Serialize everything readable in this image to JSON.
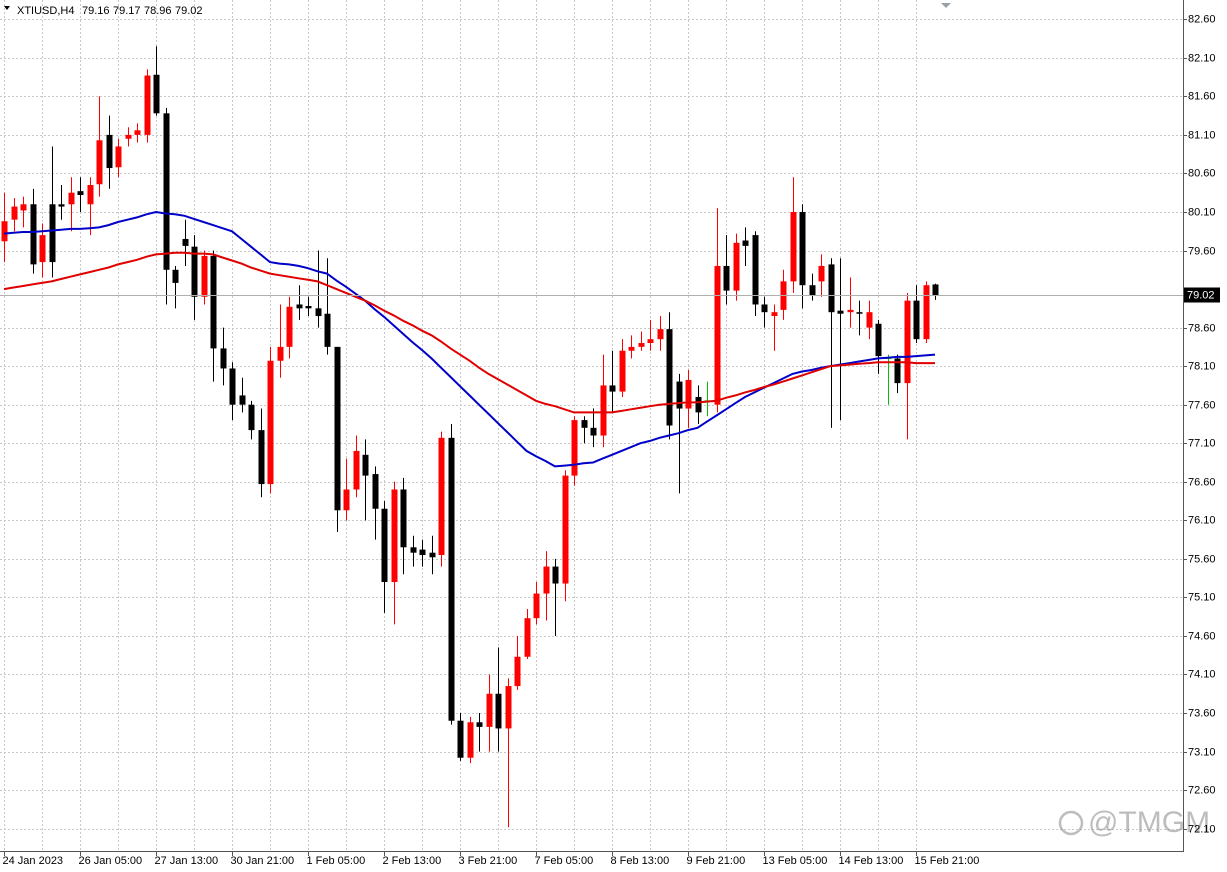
{
  "chart_data": {
    "type": "candlestick",
    "title": "XTIUSD,H4",
    "categories": [
      "24 Jan 2023",
      null,
      null,
      null,
      null,
      null,
      null,
      null,
      "26 Jan 05:00",
      null,
      null,
      null,
      null,
      null,
      null,
      null,
      "27 Jan 13:00",
      null,
      null,
      null,
      null,
      null,
      null,
      null,
      "30 Jan 21:00",
      null,
      null,
      null,
      null,
      null,
      null,
      null,
      "1 Feb 05:00",
      null,
      null,
      null,
      null,
      null,
      null,
      null,
      "2 Feb 13:00",
      null,
      null,
      null,
      null,
      null,
      null,
      null,
      "3 Feb 21:00",
      null,
      null,
      null,
      null,
      null,
      null,
      null,
      "7 Feb 05:00",
      null,
      null,
      null,
      null,
      null,
      null,
      null,
      "8 Feb 13:00",
      null,
      null,
      null,
      null,
      null,
      null,
      null,
      "9 Feb 21:00",
      null,
      null,
      null,
      null,
      null,
      null,
      null,
      "13 Feb 05:00",
      null,
      null,
      null,
      null,
      null,
      null,
      null,
      "14 Feb 13:00",
      null,
      null,
      null,
      null,
      null,
      null,
      null,
      "15 Feb 21:00",
      null,
      null
    ],
    "open": [
      79.72,
      80.0,
      80.12,
      80.2,
      79.45,
      80.2,
      80.2,
      80.2,
      80.37,
      80.2,
      80.46,
      81.1,
      80.68,
      81.05,
      81.1,
      81.1,
      81.88,
      81.38,
      79.35,
      79.75,
      79.65,
      79.0,
      79.53,
      78.33,
      78.07,
      77.72,
      77.6,
      77.27,
      76.57,
      78.17,
      78.35,
      78.9,
      78.88,
      78.85,
      78.78,
      78.35,
      76.23,
      76.5,
      76.95,
      76.7,
      76.25,
      75.3,
      76.5,
      75.75,
      75.72,
      75.68,
      75.65,
      77.17,
      73.5,
      73.02,
      73.48,
      73.42,
      73.85,
      73.4,
      73.95,
      74.33,
      74.83,
      75.15,
      75.5,
      75.28,
      76.68,
      77.4,
      77.3,
      77.2,
      77.85,
      77.77,
      78.3,
      78.35,
      78.4,
      78.45,
      78.58,
      77.9,
      77.55,
      77.7,
      77.65,
      77.6,
      79.4,
      79.08,
      79.73,
      79.8,
      78.9,
      78.75,
      78.83,
      79.2,
      80.1,
      79.15,
      79.2,
      79.42,
      78.82,
      78.8,
      78.8,
      78.6,
      78.65,
      78.2,
      78.2,
      77.88,
      78.95,
      78.45,
      79.16
    ],
    "high": [
      80.35,
      80.28,
      80.3,
      80.4,
      79.95,
      80.95,
      80.45,
      80.55,
      80.55,
      80.55,
      81.6,
      81.35,
      81.05,
      81.2,
      81.25,
      81.95,
      82.25,
      81.45,
      79.4,
      80.0,
      79.8,
      79.6,
      79.6,
      78.6,
      78.15,
      77.95,
      77.65,
      77.55,
      78.35,
      78.9,
      79.0,
      79.15,
      79.0,
      79.6,
      79.5,
      78.35,
      76.9,
      77.2,
      77.15,
      76.8,
      76.35,
      76.6,
      76.65,
      75.9,
      75.85,
      75.9,
      77.25,
      77.35,
      73.6,
      73.55,
      73.6,
      74.1,
      74.45,
      74.05,
      74.6,
      74.95,
      75.3,
      75.7,
      75.6,
      76.75,
      77.45,
      77.45,
      77.55,
      78.25,
      78.3,
      78.45,
      78.5,
      78.55,
      78.7,
      78.75,
      78.8,
      78.0,
      78.05,
      77.85,
      77.9,
      80.15,
      79.8,
      79.82,
      79.9,
      79.85,
      79.0,
      78.9,
      79.35,
      80.55,
      80.2,
      79.3,
      79.55,
      79.5,
      79.5,
      79.25,
      78.95,
      78.95,
      78.7,
      78.25,
      78.25,
      79.05,
      79.15,
      79.2,
      79.17
    ],
    "low": [
      79.45,
      79.85,
      79.9,
      79.3,
      79.25,
      79.25,
      80.0,
      79.85,
      80.1,
      79.8,
      80.3,
      80.4,
      80.55,
      80.95,
      81.0,
      81.0,
      81.35,
      78.9,
      78.85,
      79.4,
      78.7,
      78.9,
      77.9,
      77.85,
      77.4,
      77.5,
      77.15,
      76.4,
      76.45,
      77.95,
      78.2,
      78.7,
      78.75,
      78.6,
      78.25,
      75.95,
      76.1,
      76.4,
      76.1,
      75.85,
      74.9,
      74.75,
      75.4,
      75.5,
      75.5,
      75.4,
      75.5,
      73.45,
      72.98,
      72.95,
      73.1,
      73.1,
      73.1,
      72.12,
      73.9,
      74.3,
      74.75,
      74.8,
      74.6,
      75.05,
      76.55,
      77.1,
      77.05,
      77.05,
      77.5,
      77.7,
      78.2,
      78.3,
      78.3,
      78.3,
      77.15,
      76.45,
      77.3,
      77.35,
      77.45,
      77.5,
      78.9,
      78.95,
      79.4,
      78.75,
      78.6,
      78.3,
      78.7,
      79.05,
      78.85,
      78.95,
      79.0,
      77.3,
      77.4,
      78.6,
      78.5,
      78.45,
      78.0,
      77.6,
      77.75,
      77.15,
      78.4,
      78.4,
      78.96
    ],
    "close": [
      79.98,
      80.17,
      80.2,
      79.42,
      79.8,
      79.45,
      80.17,
      80.35,
      80.32,
      80.45,
      81.03,
      80.67,
      80.95,
      81.1,
      81.16,
      81.87,
      81.38,
      79.35,
      79.18,
      79.66,
      79.0,
      79.53,
      78.33,
      78.07,
      77.6,
      77.6,
      77.27,
      76.57,
      78.17,
      78.35,
      78.87,
      78.85,
      78.85,
      78.75,
      78.35,
      76.23,
      76.5,
      77.0,
      76.68,
      76.25,
      75.3,
      76.5,
      75.75,
      75.68,
      75.65,
      75.62,
      77.17,
      73.5,
      73.02,
      73.48,
      73.42,
      73.85,
      73.4,
      73.95,
      74.33,
      74.83,
      75.15,
      75.5,
      75.28,
      76.68,
      77.4,
      77.3,
      77.2,
      77.85,
      77.77,
      78.3,
      78.35,
      78.4,
      78.45,
      78.58,
      77.33,
      77.55,
      77.92,
      77.5,
      77.65,
      79.4,
      79.08,
      79.7,
      79.66,
      78.9,
      78.8,
      78.8,
      79.2,
      80.1,
      79.15,
      79.02,
      79.4,
      78.8,
      78.78,
      78.83,
      78.78,
      78.8,
      78.23,
      78.2,
      77.88,
      78.95,
      78.45,
      79.15,
      79.02
    ],
    "up_color": "#ff0000",
    "down_color": "#000000",
    "doji_color": "#00c000",
    "overlays": [
      {
        "color": "#0000c8",
        "values": [
          79.82,
          79.83,
          79.84,
          79.84,
          79.85,
          79.86,
          79.87,
          79.88,
          79.88,
          79.89,
          79.9,
          79.93,
          79.97,
          80.0,
          80.03,
          80.07,
          80.1,
          80.08,
          80.07,
          80.05,
          80.01,
          79.97,
          79.93,
          79.89,
          79.85,
          79.75,
          79.65,
          79.55,
          79.45,
          79.43,
          79.42,
          79.4,
          79.37,
          79.33,
          79.3,
          79.21,
          79.13,
          79.04,
          78.95,
          78.84,
          78.74,
          78.63,
          78.52,
          78.41,
          78.31,
          78.2,
          78.08,
          77.96,
          77.84,
          77.72,
          77.6,
          77.48,
          77.36,
          77.24,
          77.12,
          77.0,
          76.93,
          76.87,
          76.8,
          76.81,
          76.82,
          76.84,
          76.85,
          76.9,
          76.95,
          77.0,
          77.05,
          77.1,
          77.13,
          77.17,
          77.2,
          77.23,
          77.27,
          77.3,
          77.38,
          77.46,
          77.54,
          77.62,
          77.7,
          77.76,
          77.82,
          77.88,
          77.94,
          78.0,
          78.03,
          78.05,
          78.08,
          78.1,
          78.12,
          78.14,
          78.16,
          78.18,
          78.2,
          78.21,
          78.22,
          78.22,
          78.23,
          78.24,
          78.25
        ]
      },
      {
        "color": "#e00000",
        "values": [
          79.1,
          79.12,
          79.14,
          79.16,
          79.18,
          79.2,
          79.23,
          79.26,
          79.29,
          79.32,
          79.35,
          79.38,
          79.42,
          79.45,
          79.48,
          79.52,
          79.55,
          79.56,
          79.57,
          79.57,
          79.56,
          79.56,
          79.55,
          79.51,
          79.47,
          79.43,
          79.38,
          79.34,
          79.3,
          79.28,
          79.26,
          79.24,
          79.22,
          79.2,
          79.15,
          79.1,
          79.05,
          79.0,
          78.95,
          78.89,
          78.82,
          78.76,
          78.69,
          78.63,
          78.56,
          78.5,
          78.42,
          78.33,
          78.25,
          78.17,
          78.08,
          78.0,
          77.93,
          77.86,
          77.79,
          77.72,
          77.65,
          77.61,
          77.58,
          77.54,
          77.5,
          77.5,
          77.5,
          77.5,
          77.5,
          77.52,
          77.54,
          77.56,
          77.58,
          77.6,
          77.61,
          77.62,
          77.63,
          77.63,
          77.64,
          77.65,
          77.69,
          77.72,
          77.76,
          77.79,
          77.83,
          77.86,
          77.9,
          77.94,
          77.98,
          78.02,
          78.06,
          78.1,
          78.11,
          78.12,
          78.13,
          78.14,
          78.15,
          78.15,
          78.15,
          78.15,
          78.14,
          78.14,
          78.14
        ]
      }
    ],
    "ylim": [
      71.81,
      82.85
    ],
    "yticks": [
      {
        "value": 82.6,
        "label": "82.60"
      },
      {
        "value": 82.1,
        "label": "82.10"
      },
      {
        "value": 81.6,
        "label": "81.60"
      },
      {
        "value": 81.1,
        "label": "81.10"
      },
      {
        "value": 80.6,
        "label": "80.60"
      },
      {
        "value": 80.1,
        "label": "80.10"
      },
      {
        "value": 79.6,
        "label": "79.60"
      },
      {
        "value": 78.6,
        "label": "78.60"
      },
      {
        "value": 78.1,
        "label": "78.10"
      },
      {
        "value": 77.6,
        "label": "77.60"
      },
      {
        "value": 77.1,
        "label": "77.10"
      },
      {
        "value": 76.6,
        "label": "76.60"
      },
      {
        "value": 76.1,
        "label": "76.10"
      },
      {
        "value": 75.6,
        "label": "75.60"
      },
      {
        "value": 75.1,
        "label": "75.10"
      },
      {
        "value": 74.6,
        "label": "74.60"
      },
      {
        "value": 74.1,
        "label": "74.10"
      },
      {
        "value": 73.6,
        "label": "73.60"
      },
      {
        "value": 73.1,
        "label": "73.10"
      },
      {
        "value": 72.6,
        "label": "72.60"
      },
      {
        "value": 72.1,
        "label": "72.10"
      }
    ],
    "grid": true,
    "price_line_color": "#b0b0b0",
    "watermark": "@TMGM"
  }
}
